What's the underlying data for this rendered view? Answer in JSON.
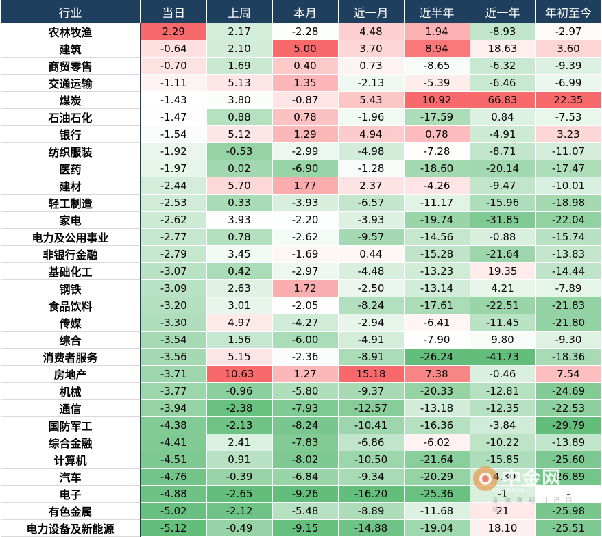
{
  "chart_data": {
    "type": "table",
    "columns": [
      "行业",
      "当日",
      "上周",
      "本月",
      "近一月",
      "近半年",
      "近一年",
      "年初至今"
    ],
    "rows": [
      {
        "industry": "农林牧渔",
        "values": [
          "2.29",
          "2.17",
          "-2.28",
          "4.48",
          "1.94",
          "-8.93",
          "-2.97"
        ]
      },
      {
        "industry": "建筑",
        "values": [
          "-0.64",
          "2.10",
          "5.00",
          "3.70",
          "8.94",
          "18.63",
          "3.60"
        ]
      },
      {
        "industry": "商贸零售",
        "values": [
          "-0.70",
          "1.69",
          "0.40",
          "0.73",
          "-8.65",
          "-6.32",
          "-9.39"
        ]
      },
      {
        "industry": "交通运输",
        "values": [
          "-1.11",
          "5.13",
          "1.35",
          "-2.13",
          "-5.39",
          "-6.46",
          "-6.99"
        ]
      },
      {
        "industry": "煤炭",
        "values": [
          "-1.43",
          "3.80",
          "-0.87",
          "5.43",
          "10.92",
          "66.83",
          "22.35"
        ]
      },
      {
        "industry": "石油石化",
        "values": [
          "-1.47",
          "0.88",
          "0.78",
          "-1.96",
          "-17.59",
          "0.84",
          "-7.53"
        ]
      },
      {
        "industry": "银行",
        "values": [
          "-1.54",
          "5.12",
          "1.29",
          "4.94",
          "0.78",
          "-4.91",
          "3.23"
        ]
      },
      {
        "industry": "纺织服装",
        "values": [
          "-1.92",
          "-0.53",
          "-2.99",
          "-4.98",
          "-7.28",
          "-8.71",
          "-11.07"
        ]
      },
      {
        "industry": "医药",
        "values": [
          "-1.97",
          "0.02",
          "-6.90",
          "-1.28",
          "-18.60",
          "-20.14",
          "-17.47"
        ]
      },
      {
        "industry": "建材",
        "values": [
          "-2.44",
          "5.70",
          "1.77",
          "2.37",
          "-4.26",
          "-9.47",
          "-10.01"
        ]
      },
      {
        "industry": "轻工制造",
        "values": [
          "-2.53",
          "0.33",
          "-3.93",
          "-6.57",
          "-11.17",
          "-15.96",
          "-18.98"
        ]
      },
      {
        "industry": "家电",
        "values": [
          "-2.62",
          "3.93",
          "-2.20",
          "-3.93",
          "-19.74",
          "-31.85",
          "-22.04"
        ]
      },
      {
        "industry": "电力及公用事业",
        "values": [
          "-2.77",
          "0.78",
          "-2.62",
          "-9.57",
          "-14.56",
          "-0.88",
          "-15.74"
        ]
      },
      {
        "industry": "非银行金融",
        "values": [
          "-2.79",
          "3.45",
          "-1.69",
          "0.44",
          "-15.28",
          "-21.64",
          "-13.83"
        ]
      },
      {
        "industry": "基础化工",
        "values": [
          "-3.07",
          "0.42",
          "-2.97",
          "-4.48",
          "-13.23",
          "19.35",
          "-14.44"
        ]
      },
      {
        "industry": "钢铁",
        "values": [
          "-3.09",
          "2.63",
          "1.72",
          "-2.50",
          "-13.14",
          "4.21",
          "-7.89"
        ]
      },
      {
        "industry": "食品饮料",
        "values": [
          "-3.20",
          "3.01",
          "-2.05",
          "-8.24",
          "-17.61",
          "-22.51",
          "-21.83"
        ]
      },
      {
        "industry": "传媒",
        "values": [
          "-3.30",
          "4.97",
          "-4.27",
          "-2.94",
          "-6.41",
          "-11.45",
          "-21.80"
        ]
      },
      {
        "industry": "综合",
        "values": [
          "-3.54",
          "1.56",
          "-6.00",
          "-4.91",
          "-7.90",
          "9.80",
          "-9.30"
        ]
      },
      {
        "industry": "消费者服务",
        "values": [
          "-3.56",
          "5.15",
          "-2.36",
          "-8.91",
          "-26.24",
          "-41.73",
          "-18.36"
        ]
      },
      {
        "industry": "房地产",
        "values": [
          "-3.71",
          "10.63",
          "1.27",
          "15.18",
          "7.38",
          "-0.46",
          "7.54"
        ]
      },
      {
        "industry": "机械",
        "values": [
          "-3.77",
          "-0.96",
          "-5.80",
          "-9.37",
          "-20.33",
          "-12.81",
          "-24.69"
        ]
      },
      {
        "industry": "通信",
        "values": [
          "-3.94",
          "-2.38",
          "-7.93",
          "-12.57",
          "-13.18",
          "-12.35",
          "-22.53"
        ]
      },
      {
        "industry": "国防军工",
        "values": [
          "-4.38",
          "-2.13",
          "-8.24",
          "-10.41",
          "-16.36",
          "-3.84",
          "-29.79"
        ]
      },
      {
        "industry": "综合金融",
        "values": [
          "-4.41",
          "2.41",
          "-7.83",
          "-6.86",
          "-6.02",
          "-10.22",
          "-13.89"
        ]
      },
      {
        "industry": "计算机",
        "values": [
          "-4.51",
          "0.91",
          "-8.02",
          "-10.50",
          "-21.64",
          "-15.85",
          "-25.60"
        ]
      },
      {
        "industry": "汽车",
        "values": [
          "-4.76",
          "-0.39",
          "-6.84",
          "-9.34",
          "-20.29",
          "-4.30",
          "-26.89"
        ]
      },
      {
        "industry": "电子",
        "values": [
          "-4.88",
          "-2.65",
          "-9.26",
          "-16.20",
          "-25.36",
          "-1",
          "-"
        ]
      },
      {
        "industry": "有色金属",
        "values": [
          "-5.02",
          "-2.12",
          "-5.48",
          "-8.89",
          "-11.68",
          "21",
          "-25.98"
        ]
      },
      {
        "industry": "电力设备及新能源",
        "values": [
          "-5.12",
          "-0.49",
          "-9.15",
          "-14.88",
          "-19.04",
          "18.10",
          "-25.51"
        ]
      }
    ]
  },
  "colors": {
    "header_bg": "#1f3f5f",
    "positive": "#f8696b",
    "negative": "#63be7b",
    "neutral": "#ffffff"
  },
  "watermark": {
    "brand": "中金网",
    "domain": "CNGOLD.ORG.CN",
    "tagline": "金 融 财 经 门 户 网 站"
  }
}
